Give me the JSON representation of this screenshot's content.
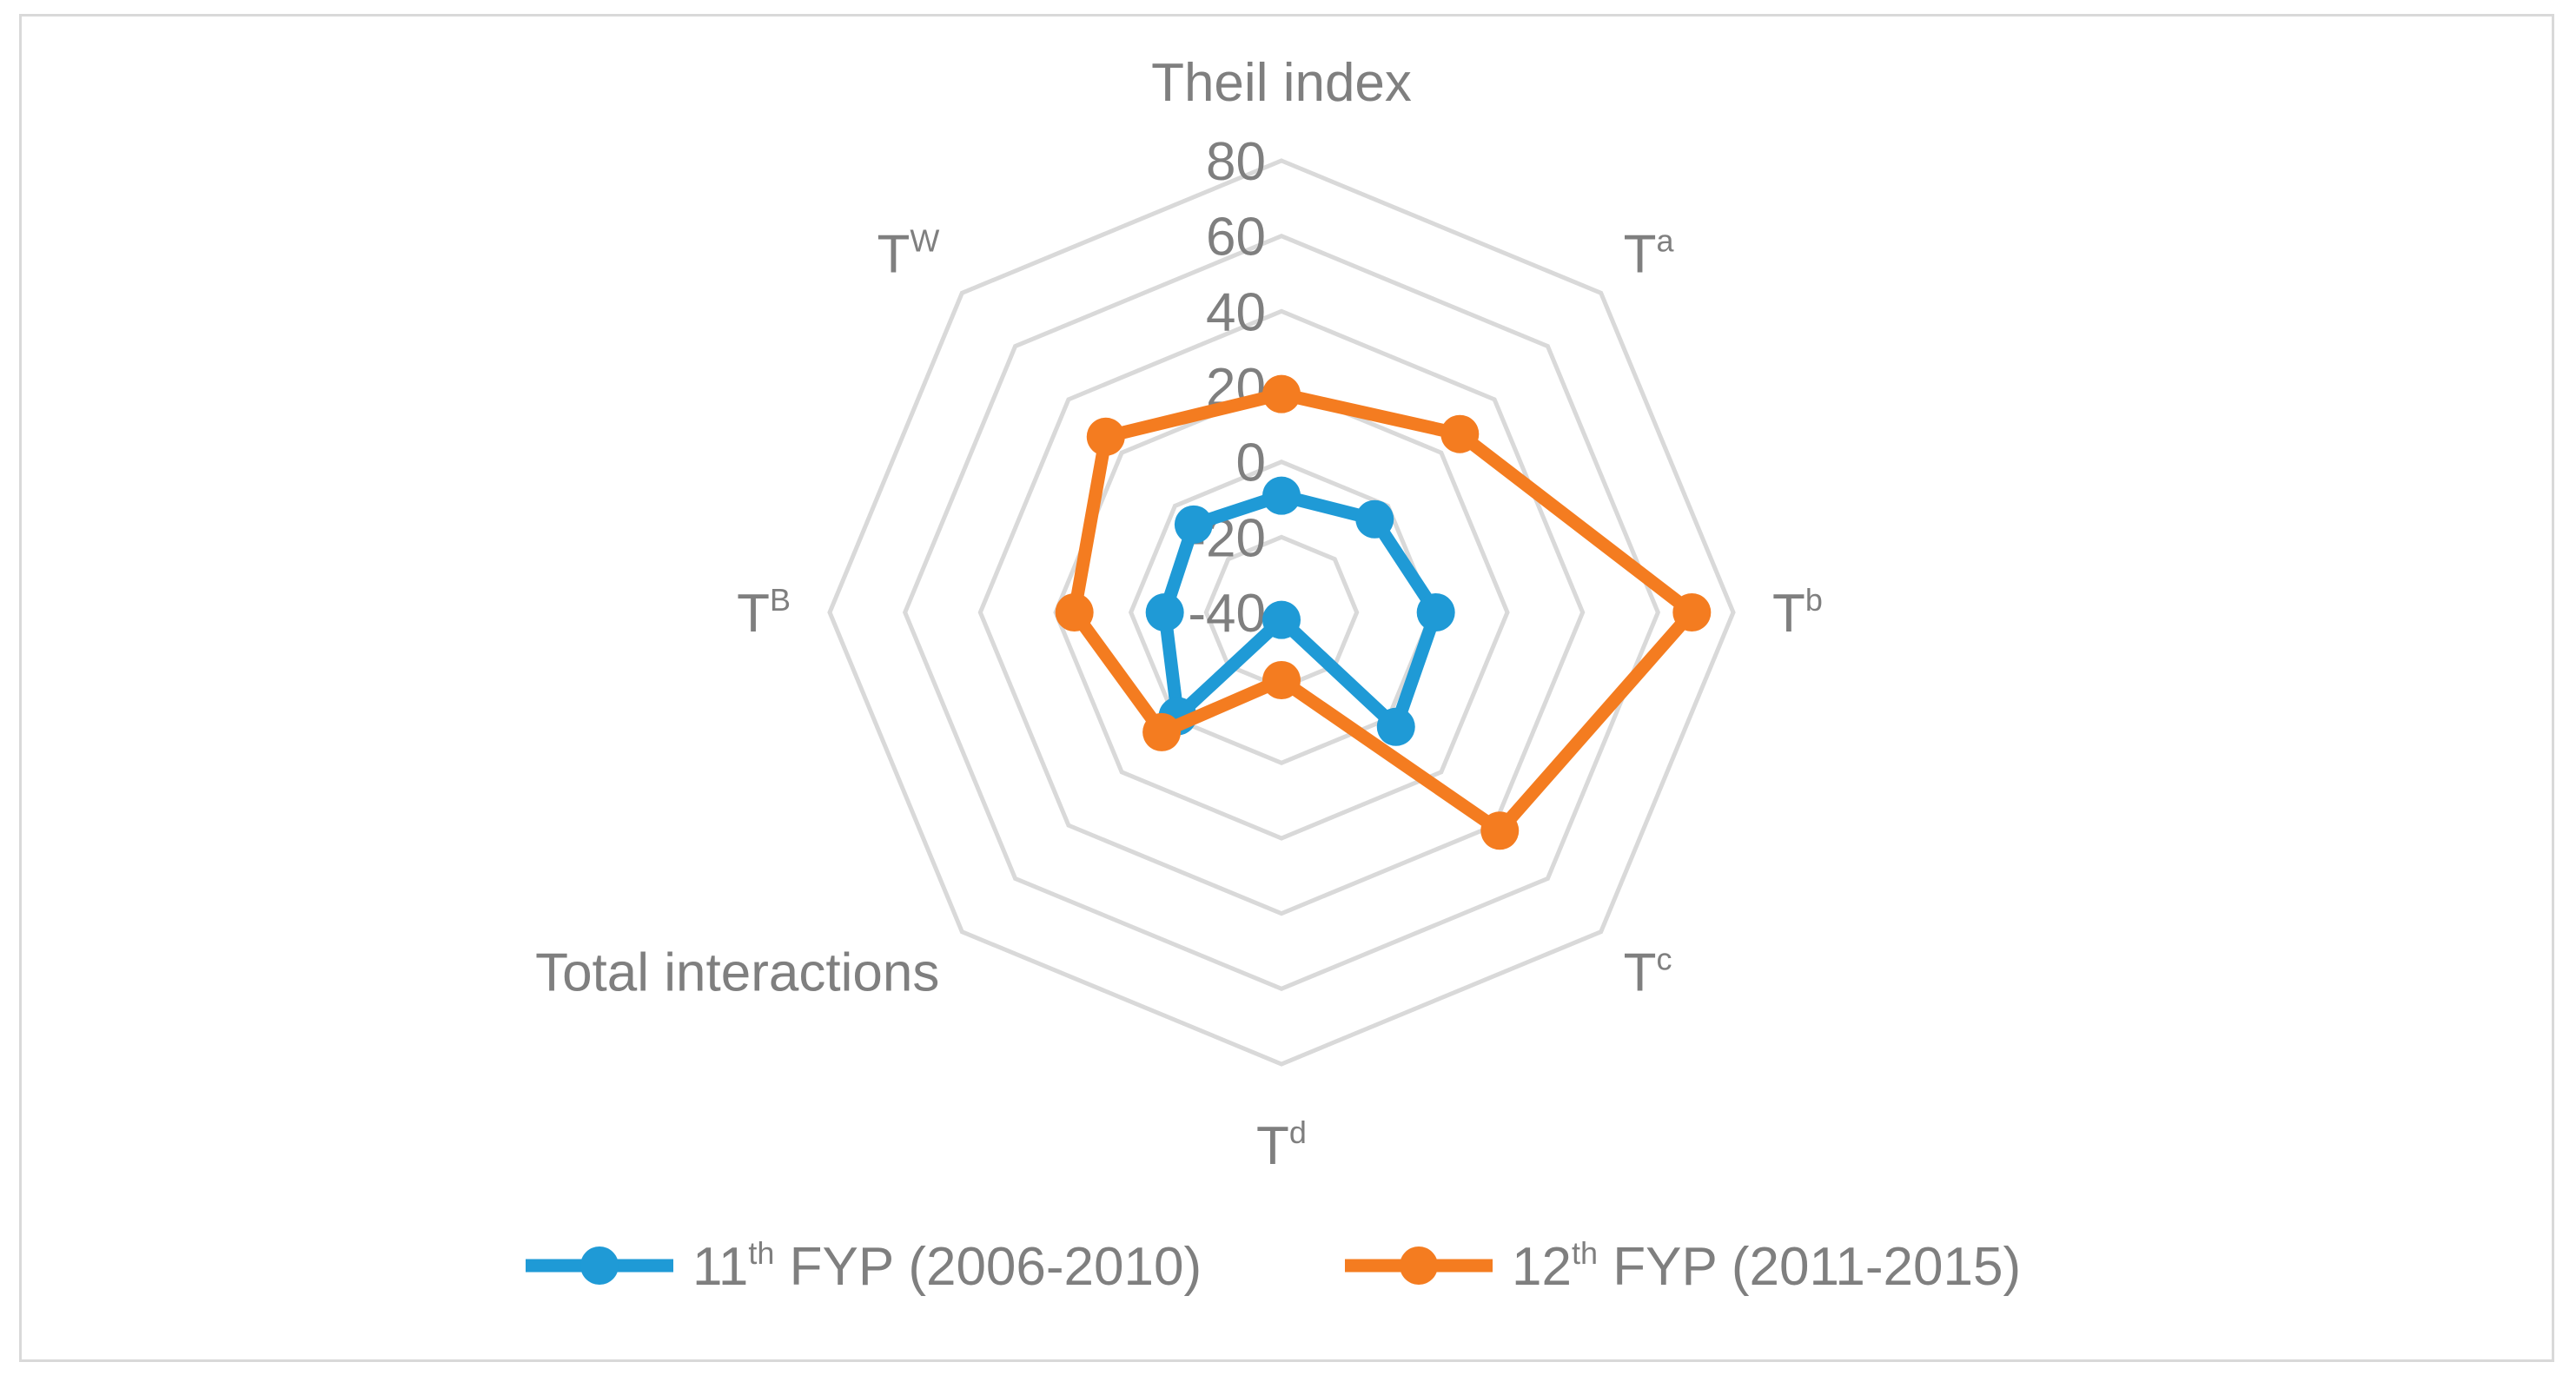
{
  "chart_data": {
    "type": "radar",
    "title": "",
    "axes": [
      {
        "base": "Theil index",
        "sup": ""
      },
      {
        "base": "T",
        "sup": "a"
      },
      {
        "base": "T",
        "sup": "b"
      },
      {
        "base": "T",
        "sup": "c"
      },
      {
        "base": "T",
        "sup": "d"
      },
      {
        "base": "Total interactions",
        "sup": ""
      },
      {
        "base": "T",
        "sup": "B"
      },
      {
        "base": "T",
        "sup": "W"
      }
    ],
    "ticks": [
      "-40",
      "-20",
      "0",
      "20",
      "40",
      "60",
      "80"
    ],
    "tick_values": [
      -40,
      -20,
      0,
      20,
      40,
      60,
      80
    ],
    "range": [
      -40,
      80
    ],
    "series": [
      {
        "name_base": "11",
        "name_sup": "th",
        "name_rest": " FYP (2006-2010)",
        "color": "#1f9ad6",
        "values": [
          -9,
          -5,
          1,
          3,
          -38,
          -1,
          -9,
          -7
        ]
      },
      {
        "name_base": "12",
        "name_sup": "th",
        "name_rest": " FYP (2011-2015)",
        "color": "#f47c20",
        "values": [
          18,
          27,
          69,
          42,
          -22,
          5,
          15,
          26
        ]
      }
    ]
  }
}
